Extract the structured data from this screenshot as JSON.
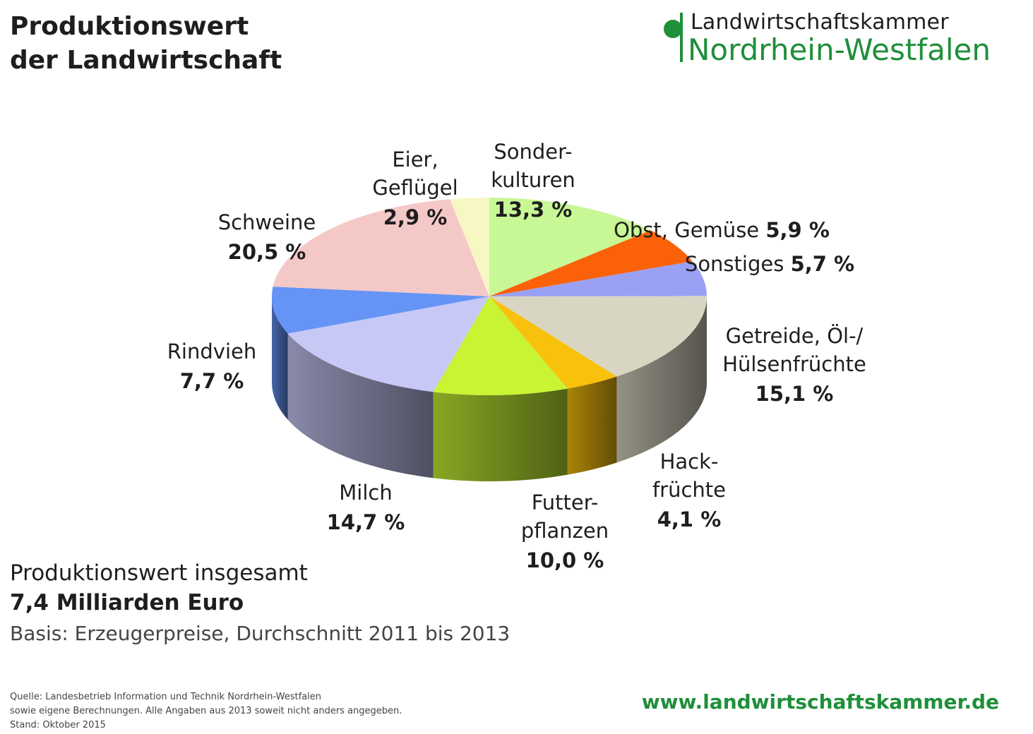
{
  "header": {
    "title_line1": "Produktionswert",
    "title_line2": "der Landwirtschaft"
  },
  "logo": {
    "line1": "Landwirtschaftskammer",
    "line2": "Nordrhein-Westfalen"
  },
  "chart_data": {
    "type": "pie",
    "title": "",
    "unit": "%",
    "slices": [
      {
        "name": [
          "Sonder-",
          "kulturen"
        ],
        "label": "13,3 %",
        "value": 13.3,
        "color": "#c8f796"
      },
      {
        "name": [
          "Obst, Gemüse"
        ],
        "label": "5,9 %",
        "value": 5.9,
        "color": "#fb6108"
      },
      {
        "name": [
          "Sonstiges"
        ],
        "label": "5,7 %",
        "value": 5.7,
        "color": "#9aa0f4"
      },
      {
        "name": [
          "Getreide, Öl-/",
          "Hülsenfrüchte"
        ],
        "label": "15,1 %",
        "value": 15.1,
        "color": "#d9d5c3"
      },
      {
        "name": [
          "Hack-",
          "früchte"
        ],
        "label": "4,1 %",
        "value": 4.1,
        "color": "#f8c10c"
      },
      {
        "name": [
          "Futter-",
          "pflanzen"
        ],
        "label": "10,0 %",
        "value": 10.0,
        "color": "#c8f434"
      },
      {
        "name": [
          "Milch"
        ],
        "label": "14,7 %",
        "value": 14.7,
        "color": "#c8c8f7"
      },
      {
        "name": [
          "Rindvieh"
        ],
        "label": "7,7 %",
        "value": 7.7,
        "color": "#6594f6"
      },
      {
        "name": [
          "Schweine"
        ],
        "label": "20,5 %",
        "value": 20.5,
        "color": "#f5c8c8"
      },
      {
        "name": [
          "Eier,",
          "Geflügel"
        ],
        "label": "2,9 %",
        "value": 2.9,
        "color": "#f7f7c4"
      }
    ]
  },
  "total": {
    "label": "Produktionswert insgesamt",
    "value": "7,4 Milliarden Euro",
    "basis": "Basis: Erzeugerpreise, Durchschnitt 2011 bis 2013"
  },
  "footer": {
    "source_line1": "Quelle: Landesbetrieb Information und Technik Nordrhein-Westfalen",
    "source_line2": "sowie eigene Berechnungen. Alle Angaben aus 2013 soweit nicht anders angegeben.",
    "source_line3": "Stand: Oktober 2015",
    "website": "www.landwirtschaftskammer.de"
  }
}
